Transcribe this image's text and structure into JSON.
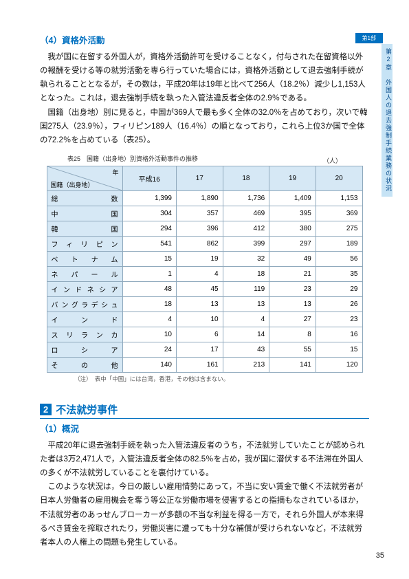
{
  "tabs": {
    "top": "第1部",
    "side": "第2章　外国人の退去強制手続業務の状況"
  },
  "section4": {
    "title": "（4）資格外活動",
    "para1": "我が国に在留する外国人が，資格外活動許可を受けることなく，付与された在留資格以外の報酬を受ける等の就労活動を専ら行っていた場合には，資格外活動として退去強制手続が執られることとなるが，その数は，平成20年は19年と比べて256人（18.2％）減少し1,153人となった。これは，退去強制手続を執った入管法違反者全体の2.9％である。",
    "para2": "国籍（出身地）別に見ると，中国が369人で最も多く全体の32.0％を占めており，次いで韓国275人（23.9％），フィリピン189人（16.4％）の順となっており，これら上位3か国で全体の72.2％を占めている（表25）。"
  },
  "table": {
    "caption": "表25　国籍（出身地）別資格外活動事件の推移",
    "unit": "（人）",
    "diag_top": "年",
    "diag_bottom": "国籍（出身地）",
    "cols": [
      "平成16",
      "17",
      "18",
      "19",
      "20"
    ],
    "rows": [
      {
        "label": "総数",
        "v": [
          "1,399",
          "1,890",
          "1,736",
          "1,409",
          "1,153"
        ]
      },
      {
        "label": "中国",
        "v": [
          "304",
          "357",
          "469",
          "395",
          "369"
        ]
      },
      {
        "label": "韓国",
        "v": [
          "294",
          "396",
          "412",
          "380",
          "275"
        ]
      },
      {
        "label": "フィリピン",
        "v": [
          "541",
          "862",
          "399",
          "297",
          "189"
        ]
      },
      {
        "label": "ベトナム",
        "v": [
          "15",
          "19",
          "32",
          "49",
          "56"
        ]
      },
      {
        "label": "ネパール",
        "v": [
          "1",
          "4",
          "18",
          "21",
          "35"
        ]
      },
      {
        "label": "インドネシア",
        "v": [
          "48",
          "45",
          "119",
          "23",
          "29"
        ]
      },
      {
        "label": "バングラデシュ",
        "v": [
          "18",
          "13",
          "13",
          "13",
          "26"
        ]
      },
      {
        "label": "インド",
        "v": [
          "4",
          "10",
          "4",
          "27",
          "23"
        ]
      },
      {
        "label": "スリランカ",
        "v": [
          "10",
          "6",
          "14",
          "8",
          "16"
        ]
      },
      {
        "label": "ロシア",
        "v": [
          "24",
          "17",
          "43",
          "55",
          "15"
        ]
      },
      {
        "label": "その他",
        "v": [
          "140",
          "161",
          "213",
          "141",
          "120"
        ]
      }
    ],
    "note": "（注）　表中「中国」には台湾，香港，その他は含まない。"
  },
  "section2major": {
    "num": "2",
    "title": "不法就労事件",
    "sub_title": "（1）概況",
    "para1": "平成20年に退去強制手続を執った入管法違反者のうち，不法就労していたことが認められた者は3万2,471人で，入管法違反者全体の82.5％を占め，我が国に潜伏する不法滞在外国人の多くが不法就労していることを裏付けている。",
    "para2": "このような状況は，今日の厳しい雇用情勢にあって，不当に安い賃金で働く不法就労者が日本人労働者の雇用機会を奪う等公正な労働市場を侵害するとの指摘もなされているほか，不法就労者のあっせんブローカーが多額の不当な利益を得る一方で，それら外国人が本来得るべき賃金を搾取されたり，労働災害に遭っても十分な補償が受けられないなど，不法就労者本人の人権上の問題も発生している。"
  },
  "page_number": "35"
}
